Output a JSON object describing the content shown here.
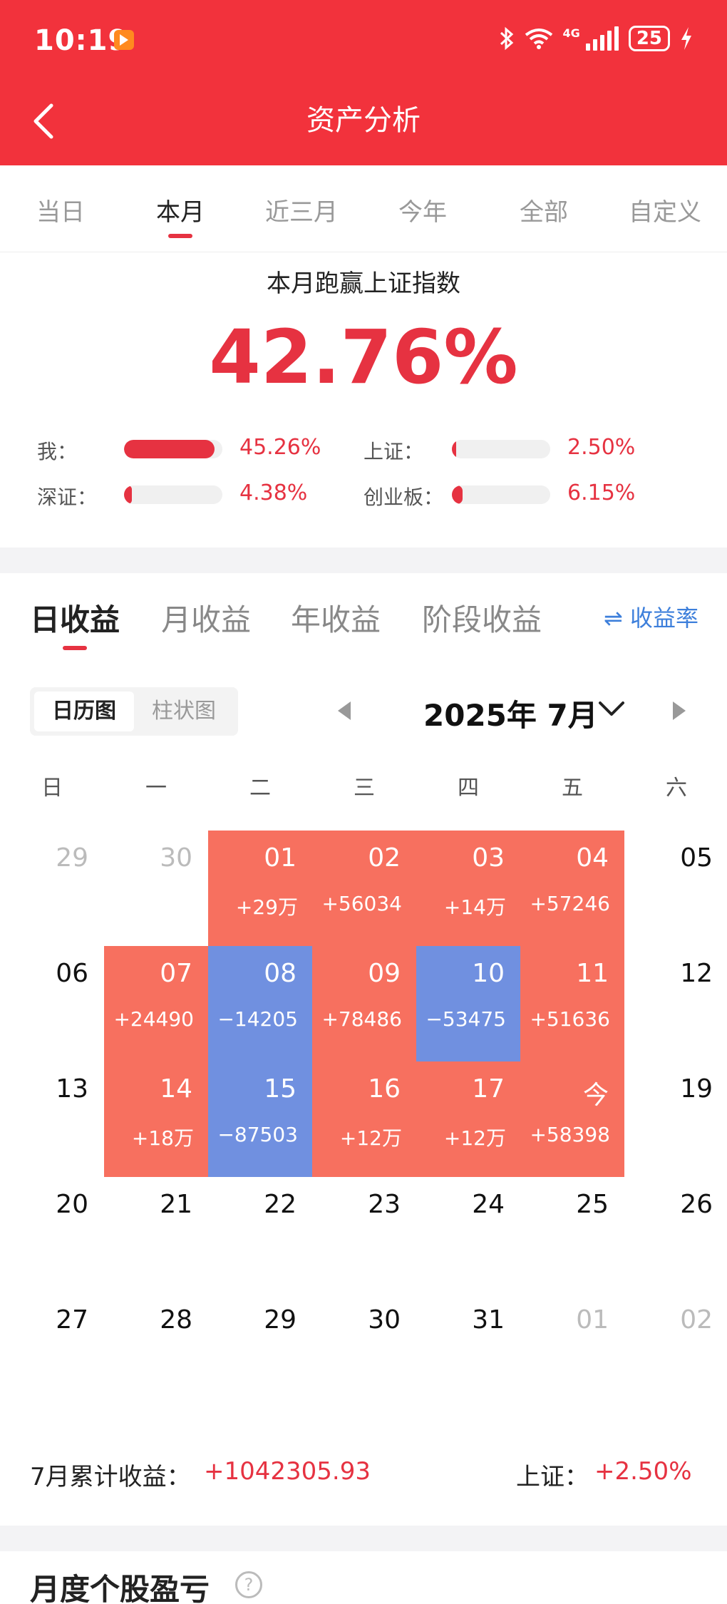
{
  "status_bar": {
    "time": "10:19",
    "network": "4G",
    "battery": "25"
  },
  "nav": {
    "title": "资产分析"
  },
  "period_tabs": [
    "当日",
    "本月",
    "近三月",
    "今年",
    "全部",
    "自定义"
  ],
  "summary": {
    "title": "本月跑赢上证指数",
    "value": "42.76%",
    "comparisons": [
      {
        "label": "我：",
        "value": "45.26%",
        "fill": 0.92
      },
      {
        "label": "上证：",
        "value": "2.50%",
        "fill": 0.04
      },
      {
        "label": "深证：",
        "value": "4.38%",
        "fill": 0.08
      },
      {
        "label": "创业板：",
        "value": "6.15%",
        "fill": 0.11
      }
    ]
  },
  "earnings_tabs": [
    "日收益",
    "月收益",
    "年收益",
    "阶段收益"
  ],
  "rate_switch": "⇌ 收益率",
  "calendar": {
    "view_options": [
      "日历图",
      "柱状图"
    ],
    "month_title": "2025年 7月",
    "weekdays": [
      "日",
      "一",
      "二",
      "三",
      "四",
      "五",
      "六"
    ],
    "rows": [
      [
        {
          "d": "29",
          "o": 1
        },
        {
          "d": "30",
          "o": 1
        },
        {
          "d": "01",
          "v": "+29万",
          "t": "up"
        },
        {
          "d": "02",
          "v": "+56034",
          "t": "up"
        },
        {
          "d": "03",
          "v": "+14万",
          "t": "up"
        },
        {
          "d": "04",
          "v": "+57246",
          "t": "up"
        },
        {
          "d": "05"
        }
      ],
      [
        {
          "d": "06"
        },
        {
          "d": "07",
          "v": "+24490",
          "t": "up"
        },
        {
          "d": "08",
          "v": "−14205",
          "t": "down"
        },
        {
          "d": "09",
          "v": "+78486",
          "t": "up"
        },
        {
          "d": "10",
          "v": "−53475",
          "t": "down"
        },
        {
          "d": "11",
          "v": "+51636",
          "t": "up"
        },
        {
          "d": "12"
        }
      ],
      [
        {
          "d": "13"
        },
        {
          "d": "14",
          "v": "+18万",
          "t": "up"
        },
        {
          "d": "15",
          "v": "−87503",
          "t": "down"
        },
        {
          "d": "16",
          "v": "+12万",
          "t": "up"
        },
        {
          "d": "17",
          "v": "+12万",
          "t": "up"
        },
        {
          "d": "今",
          "v": "+58398",
          "t": "up"
        },
        {
          "d": "19"
        }
      ],
      [
        {
          "d": "20"
        },
        {
          "d": "21"
        },
        {
          "d": "22"
        },
        {
          "d": "23"
        },
        {
          "d": "24"
        },
        {
          "d": "25"
        },
        {
          "d": "26"
        }
      ],
      [
        {
          "d": "27"
        },
        {
          "d": "28"
        },
        {
          "d": "29"
        },
        {
          "d": "30"
        },
        {
          "d": "31"
        },
        {
          "d": "01",
          "o": 1
        },
        {
          "d": "02",
          "o": 1
        }
      ]
    ]
  },
  "footer": {
    "total_label": "7月累计收益：",
    "total_value": "+1042305.93",
    "index_label": "上证：",
    "index_value": "+2.50%"
  },
  "section2": {
    "title": "月度个股盈亏"
  },
  "colors": {
    "header": "#f2323c",
    "accent_red": "#e63241",
    "gain_cell": "#f7705f",
    "loss_cell": "#7090e0",
    "link_blue": "#3d7fdb"
  }
}
